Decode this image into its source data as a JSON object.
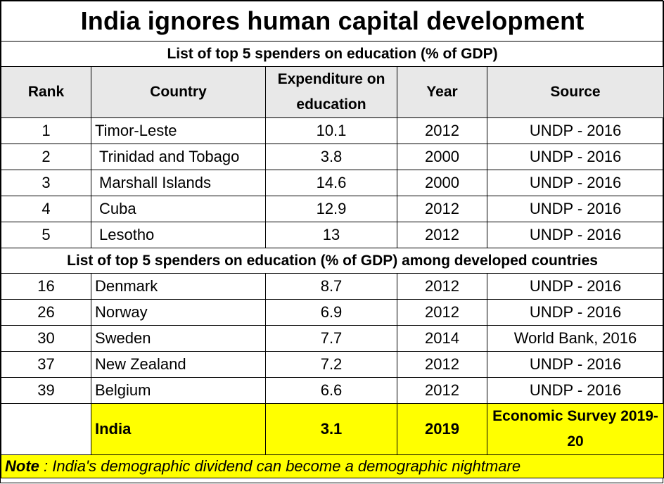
{
  "title": "India ignores human capital development",
  "section1_title": "List of top 5 spenders on education (% of GDP)",
  "section2_title": "List of top 5 spenders on education (% of GDP) among developed  countries",
  "headers": {
    "rank": "Rank",
    "country": "Country",
    "expenditure": "Expenditure on education",
    "year": "Year",
    "source": "Source"
  },
  "top5": [
    {
      "rank": "1",
      "country": "Timor-Leste",
      "expenditure": "10.1",
      "year": "2012",
      "source": "UNDP - 2016"
    },
    {
      "rank": "2",
      "country": "Trinidad and Tobago",
      "expenditure": "3.8",
      "year": "2000",
      "source": "UNDP - 2016"
    },
    {
      "rank": "3",
      "country": "Marshall Islands",
      "expenditure": "14.6",
      "year": "2000",
      "source": "UNDP - 2016"
    },
    {
      "rank": "4",
      "country": "Cuba",
      "expenditure": "12.9",
      "year": "2012",
      "source": "UNDP - 2016"
    },
    {
      "rank": "5",
      "country": "Lesotho",
      "expenditure": "13",
      "year": "2012",
      "source": "UNDP - 2016"
    }
  ],
  "developed": [
    {
      "rank": "16",
      "country": "Denmark",
      "expenditure": "8.7",
      "year": "2012",
      "source": "UNDP - 2016"
    },
    {
      "rank": "26",
      "country": "Norway",
      "expenditure": "6.9",
      "year": "2012",
      "source": "UNDP - 2016"
    },
    {
      "rank": "30",
      "country": "Sweden",
      "expenditure": "7.7",
      "year": "2014",
      "source": "World Bank, 2016"
    },
    {
      "rank": "37",
      "country": "New Zealand",
      "expenditure": "7.2",
      "year": "2012",
      "source": "UNDP - 2016"
    },
    {
      "rank": "39",
      "country": "Belgium",
      "expenditure": "6.6",
      "year": "2012",
      "source": "UNDP - 2016"
    }
  ],
  "india": {
    "rank": "",
    "country": "India",
    "expenditure": "3.1",
    "year": "2019",
    "source": "Economic Survey 2019-20"
  },
  "note": {
    "label": "Note",
    "text": " : India's demographic dividend can become a demographic nightmare"
  },
  "colors": {
    "highlight": "#ffff00",
    "header_bg": "#e8e8e8",
    "border": "#000000"
  }
}
